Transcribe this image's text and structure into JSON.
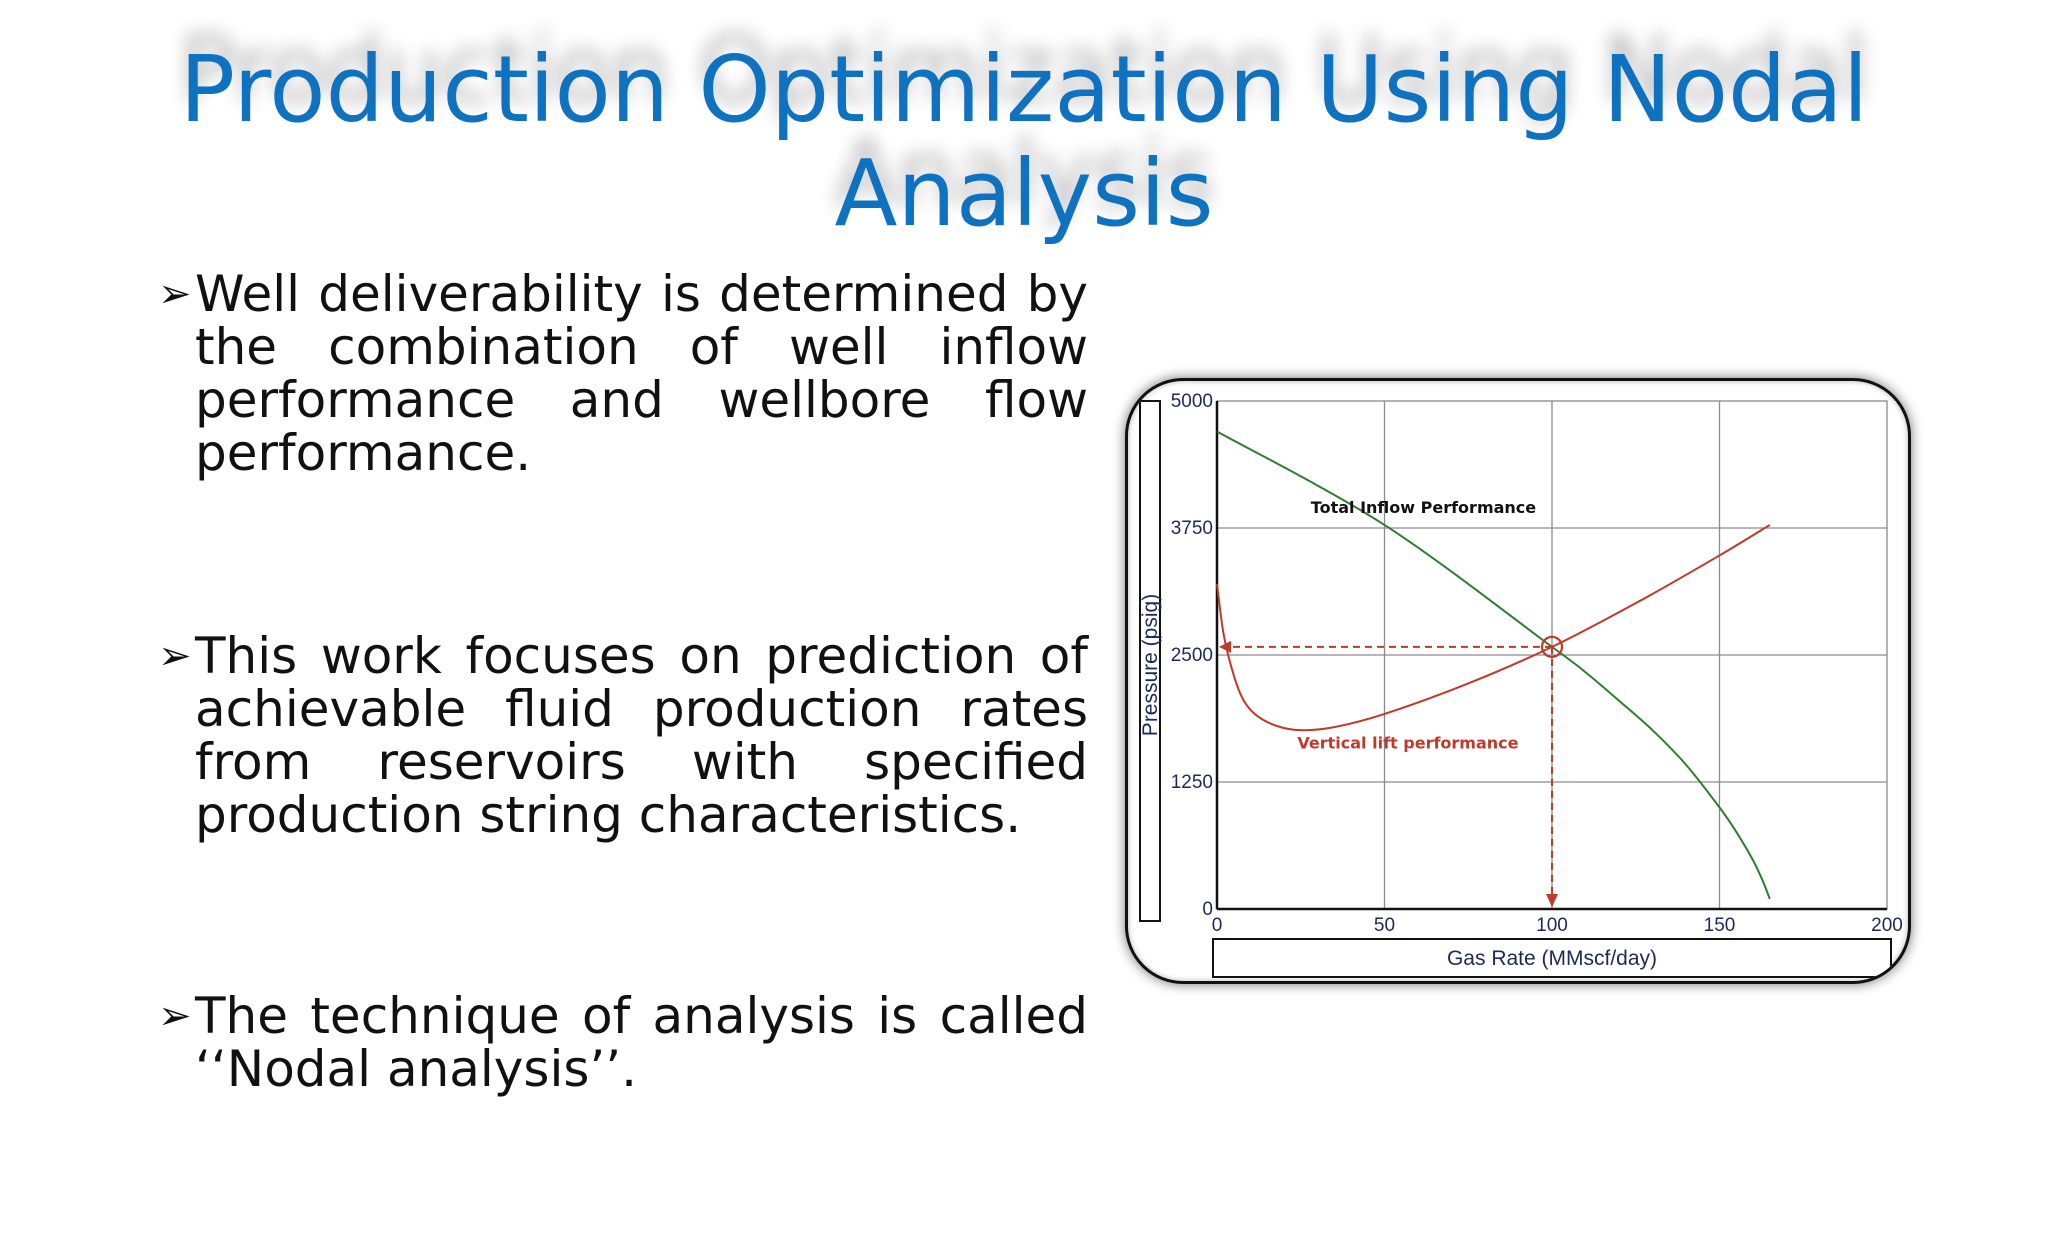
{
  "slide": {
    "title": "Production Optimization Using Nodal Analysis",
    "bullet_symbol": "➢",
    "bullets": [
      "Well deliverability is determined by the combination of well inflow performance and wellbore flow performance.",
      "This work focuses on prediction of achievable fluid production rates from reservoirs with specified production string characteristics.",
      "The technique of analysis is called ‘‘Nodal analysis’’."
    ]
  },
  "chart_data": {
    "type": "line",
    "xlabel": "Gas Rate  (MMscf/day)",
    "ylabel": "Pressure  (psig)",
    "xlim": [
      0,
      200
    ],
    "ylim": [
      0,
      5000
    ],
    "xticks": [
      "0",
      "50",
      "100",
      "150",
      "200"
    ],
    "yticks": [
      "0",
      "1250",
      "2500",
      "3750",
      "5000"
    ],
    "grid": true,
    "series": [
      {
        "name": "Total Inflow Performance",
        "color": "#2e7d32",
        "x": [
          0,
          50,
          100,
          110,
          120,
          130,
          140,
          150,
          155,
          160,
          163,
          165
        ],
        "y": [
          4700,
          3780,
          2580,
          2330,
          2050,
          1760,
          1420,
          1000,
          760,
          480,
          270,
          100
        ]
      },
      {
        "name": "Vertical lift performance",
        "color": "#c0392b",
        "x": [
          0,
          2,
          5,
          8,
          12,
          18,
          25,
          35,
          50,
          75,
          100,
          125,
          150,
          165
        ],
        "y": [
          3200,
          2700,
          2300,
          2050,
          1900,
          1800,
          1760,
          1790,
          1920,
          2220,
          2580,
          3010,
          3480,
          3780
        ]
      }
    ],
    "operating_point": {
      "x": 100,
      "y": 2580
    },
    "marker_color": "#c0392b"
  }
}
